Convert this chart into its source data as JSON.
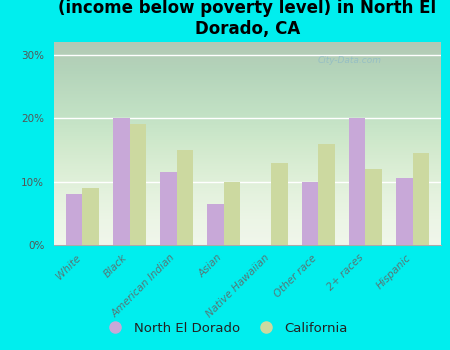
{
  "title": "Breakdown of poor residents within races\n(income below poverty level) in North El\nDorado, CA",
  "categories": [
    "White",
    "Black",
    "American Indian",
    "Asian",
    "Native Hawaiian",
    "Other race",
    "2+ races",
    "Hispanic"
  ],
  "north_el_dorado": [
    8,
    20,
    11.5,
    6.5,
    0,
    10,
    20,
    10.5
  ],
  "california": [
    9,
    19,
    15,
    10,
    13,
    16,
    12,
    14.5
  ],
  "ned_color": "#c8a8d8",
  "ca_color": "#ccd9a0",
  "background_color": "#00EEEE",
  "ylabel_ticks": [
    "0%",
    "10%",
    "20%",
    "30%"
  ],
  "yticks": [
    0,
    10,
    20,
    30
  ],
  "ylim": [
    0,
    32
  ],
  "bar_width": 0.35,
  "title_fontsize": 12,
  "tick_fontsize": 7.5,
  "legend_fontsize": 9.5,
  "watermark": "City-Data.com"
}
